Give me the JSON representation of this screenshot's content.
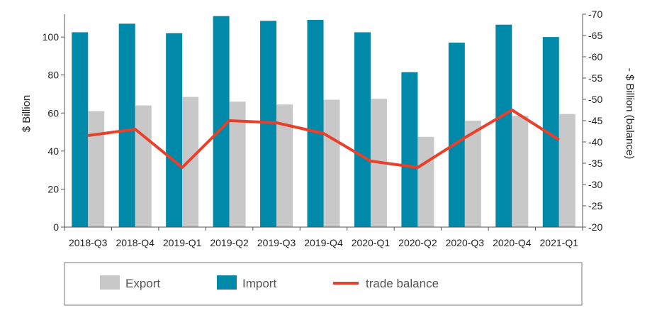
{
  "chart_data": {
    "type": "bar",
    "categories": [
      "2018-Q3",
      "2018-Q4",
      "2019-Q1",
      "2019-Q2",
      "2019-Q3",
      "2019-Q4",
      "2020-Q1",
      "2020-Q2",
      "2020-Q3",
      "2020-Q4",
      "2021-Q1"
    ],
    "series": [
      {
        "name": "Export",
        "type": "bar",
        "axis": "left",
        "color": "#c8c8c8",
        "values": [
          61,
          64,
          68.5,
          66,
          64.5,
          67,
          67.5,
          47.5,
          56,
          58.5,
          59.5
        ]
      },
      {
        "name": "Import",
        "type": "bar",
        "axis": "left",
        "color": "#0089a8",
        "values": [
          102.5,
          107,
          102,
          111,
          108.5,
          109,
          102.5,
          81.5,
          97,
          106.5,
          100
        ]
      },
      {
        "name": "trade balance",
        "type": "line",
        "axis": "right",
        "color": "#e8402a",
        "values": [
          -41.5,
          -43,
          -34,
          -45,
          -44.5,
          -42,
          -35.5,
          -34,
          -41,
          -47.5,
          -40.5
        ]
      }
    ],
    "ylabel": "$ Billion",
    "ylabel_right": "- $ Billion (balance)",
    "ylim": [
      0,
      112
    ],
    "yticks": [
      0,
      20,
      40,
      60,
      80,
      100
    ],
    "ylim_right": [
      -20,
      -70
    ],
    "yticks_right": [
      -20,
      -25,
      -30,
      -35,
      -40,
      -45,
      -50,
      -55,
      -60,
      -65,
      -70
    ],
    "grid": false,
    "legend_position": "bottom"
  }
}
